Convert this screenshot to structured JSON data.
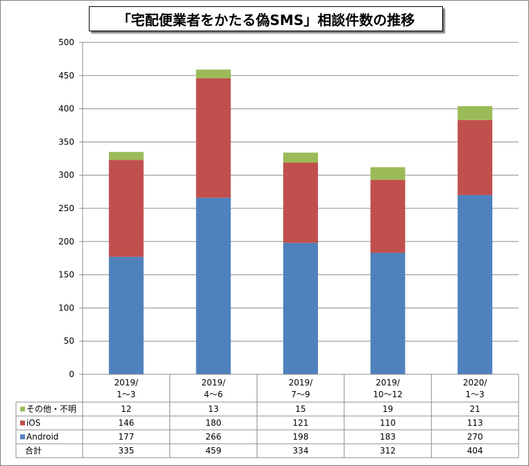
{
  "chart_data": {
    "type": "bar",
    "stacked": true,
    "title": "「宅配便業者をかたる偽SMS」相談件数の推移",
    "categories": [
      [
        "2019/",
        "1～3"
      ],
      [
        "2019/",
        "4～6"
      ],
      [
        "2019/",
        "7～9"
      ],
      [
        "2019/",
        "10～12"
      ],
      [
        "2020/",
        "1～3"
      ]
    ],
    "series": [
      {
        "name": "Android",
        "color": "#4f81bd",
        "values": [
          177,
          266,
          198,
          183,
          270
        ]
      },
      {
        "name": "iOS",
        "color": "#c0504d",
        "values": [
          146,
          180,
          121,
          110,
          113
        ]
      },
      {
        "name": "その他・不明",
        "color": "#9bbb59",
        "values": [
          12,
          13,
          15,
          19,
          21
        ]
      }
    ],
    "table_rows": [
      "その他・不明",
      "iOS",
      "Android"
    ],
    "total_label": "合計",
    "totals": [
      335,
      459,
      334,
      312,
      404
    ],
    "ylim": [
      0,
      500
    ],
    "yticks": [
      0,
      50,
      100,
      150,
      200,
      250,
      300,
      350,
      400,
      450,
      500
    ],
    "grid": true,
    "legend": "data-table"
  }
}
